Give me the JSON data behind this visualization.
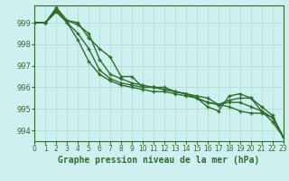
{
  "title": "Graphe pression niveau de la mer (hPa)",
  "background_color": "#cff0f0",
  "grid_color": "#aaddcc",
  "line_color": "#2d6e2d",
  "xlim": [
    0,
    23
  ],
  "ylim": [
    993.5,
    999.8
  ],
  "yticks": [
    994,
    995,
    996,
    997,
    998,
    999
  ],
  "xticks": [
    0,
    1,
    2,
    3,
    4,
    5,
    6,
    7,
    8,
    9,
    10,
    11,
    12,
    13,
    14,
    15,
    16,
    17,
    18,
    19,
    20,
    21,
    22,
    23
  ],
  "series": [
    [
      999.0,
      999.0,
      999.6,
      999.1,
      998.9,
      998.5,
      997.3,
      996.6,
      996.4,
      996.2,
      996.1,
      996.0,
      995.9,
      995.8,
      995.7,
      995.6,
      995.5,
      995.2,
      995.1,
      994.9,
      994.8,
      994.8,
      994.6,
      993.7
    ],
    [
      999.0,
      999.0,
      999.5,
      999.0,
      998.2,
      997.2,
      996.6,
      996.3,
      996.1,
      996.0,
      995.9,
      995.8,
      995.8,
      995.7,
      995.6,
      995.5,
      995.1,
      994.9,
      995.6,
      995.7,
      995.5,
      994.9,
      994.4,
      993.7
    ],
    [
      999.0,
      999.0,
      999.6,
      999.0,
      998.5,
      997.8,
      996.8,
      996.4,
      996.2,
      996.1,
      996.0,
      996.0,
      995.9,
      995.8,
      995.7,
      995.5,
      995.3,
      995.2,
      995.4,
      995.5,
      995.5,
      995.1,
      994.7,
      993.7
    ],
    [
      999.0,
      999.0,
      999.7,
      999.1,
      999.0,
      998.3,
      997.8,
      997.4,
      996.5,
      996.5,
      996.0,
      996.0,
      996.0,
      995.8,
      995.7,
      995.5,
      995.3,
      995.2,
      995.3,
      995.3,
      995.1,
      994.9,
      994.6,
      993.7
    ]
  ],
  "marker": "+",
  "markersize": 3.5,
  "markeredgewidth": 1.0,
  "linewidth": 1.0,
  "title_fontsize": 7,
  "tick_fontsize": 5.5,
  "ytick_fontsize": 6.0
}
